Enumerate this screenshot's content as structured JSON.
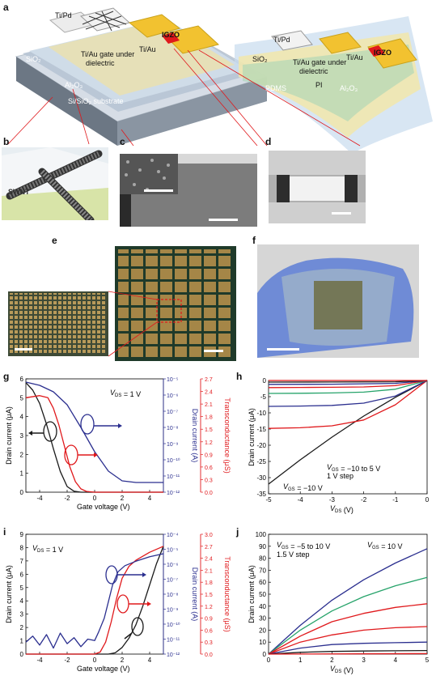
{
  "panel_labels": {
    "a": "a",
    "b": "b",
    "c": "c",
    "d": "d",
    "e": "e",
    "f": "f",
    "g": "g",
    "h": "h",
    "i": "i",
    "j": "j"
  },
  "panel_a": {
    "rigid": {
      "tipd": "Ti/Pd",
      "tiau": "Ti/Au",
      "igzo": "IGZO",
      "sio2": "SiO₂",
      "gate": "Ti/Au gate under",
      "gate2": "dielectric",
      "al2o3": "Al₂O₃",
      "substrate": "Si/SiO₂ substrate"
    },
    "flex": {
      "tipd": "Ti/Pd",
      "tiau": "Ti/Au",
      "igzo": "IGZO",
      "sio2": "SiO₂",
      "gate": "Ti/Au gate under",
      "gate2": "dielectric",
      "al2o3": "Al₂O₃",
      "pi": "PI",
      "pdms": "PDMS"
    }
  },
  "panel_b": {
    "swnt": "SWNT"
  },
  "colors": {
    "black": "#1a1a1a",
    "red": "#e0191c",
    "blue": "#2b2f8f",
    "green": "#26a36a",
    "yellow": "#f2c230"
  },
  "chart_data": [
    {
      "id": "g",
      "type": "line",
      "xlabel": "Gate voltage (V)",
      "ylabel_left": "Drain current (μA)",
      "ylabel_right1": "Drain current (A)",
      "ylabel_right2": "Transconductance (μS)",
      "annotation": "V_DS = 1 V",
      "xlim": [
        -5,
        5
      ],
      "xticks": [
        "-4",
        "-2",
        "0",
        "2",
        "4"
      ],
      "ylim_left": [
        0,
        6
      ],
      "yticks_left": [
        "0",
        "1",
        "2",
        "3",
        "4",
        "5",
        "6"
      ],
      "yticks_right1": [
        "10⁻¹²",
        "10⁻¹¹",
        "10⁻¹⁰",
        "10⁻⁹",
        "10⁻⁸",
        "10⁻⁷",
        "10⁻⁶",
        "10⁻⁵"
      ],
      "yticks_right2": [
        "0.0",
        "0.3",
        "0.6",
        "0.9",
        "1.2",
        "1.5",
        "1.8",
        "2.1",
        "2.4",
        "2.7"
      ],
      "series": [
        {
          "color": "black",
          "axis": "left",
          "x": [
            -5,
            -4.5,
            -4,
            -3.5,
            -3,
            -2.5,
            -2,
            -1.5,
            -1,
            0,
            5
          ],
          "y": [
            5.8,
            5.4,
            4.7,
            3.6,
            2.3,
            1.1,
            0.3,
            0.05,
            0,
            0,
            0
          ]
        },
        {
          "color": "red",
          "axis": "right2",
          "x": [
            -5,
            -4,
            -3.4,
            -3,
            -2.6,
            -2.2,
            -1.8,
            -1.4,
            -1,
            -0.6,
            0,
            5
          ],
          "y": [
            2.25,
            2.3,
            2.25,
            2.0,
            1.6,
            1.1,
            0.6,
            0.25,
            0.08,
            0.02,
            0,
            0
          ]
        },
        {
          "color": "blue",
          "axis": "right1",
          "x": [
            -5,
            -4,
            -3,
            -2,
            -1,
            0,
            1,
            2,
            3,
            5
          ],
          "y": [
            -5.2,
            -5.4,
            -5.8,
            -6.6,
            -8.0,
            -9.5,
            -10.7,
            -11.3,
            -11.4,
            -11.4
          ]
        }
      ]
    },
    {
      "id": "h",
      "type": "line",
      "xlabel": "V_DS (V)",
      "ylabel": "Drain current (μA)",
      "annotation_1": "V_GS = −10 to 5 V",
      "annotation_2": "1 V step",
      "curve_label": "V_GS = −10 V",
      "xlim": [
        -5,
        0
      ],
      "xticks": [
        "-5",
        "-4",
        "-3",
        "-2",
        "-1",
        "0"
      ],
      "ylim": [
        -35,
        0
      ],
      "yticks": [
        "0",
        "-5",
        "-10",
        "-15",
        "-20",
        "-25",
        "-30",
        "-35"
      ],
      "series": [
        {
          "color": "black",
          "x": [
            -5,
            -4,
            -3,
            -2,
            -1,
            0
          ],
          "y": [
            -32,
            -24.5,
            -17.5,
            -11,
            -5.2,
            0
          ]
        },
        {
          "color": "red",
          "x": [
            -5,
            -4,
            -3,
            -2,
            -1,
            0
          ],
          "y": [
            -14.8,
            -14.6,
            -14.0,
            -12.2,
            -7.5,
            0
          ]
        },
        {
          "color": "blue",
          "x": [
            -5,
            -4,
            -3,
            -2,
            -1,
            0
          ],
          "y": [
            -8,
            -7.9,
            -7.7,
            -7.0,
            -4.8,
            0
          ]
        },
        {
          "color": "green",
          "x": [
            -5,
            -4,
            -3,
            -2,
            -1,
            0
          ],
          "y": [
            -4,
            -3.95,
            -3.85,
            -3.6,
            -2.7,
            0
          ]
        },
        {
          "color": "red",
          "x": [
            -5,
            -4,
            -3,
            -2,
            -1,
            0
          ],
          "y": [
            -2.2,
            -2.15,
            -2.1,
            -2.0,
            -1.6,
            0
          ]
        },
        {
          "color": "blue",
          "x": [
            -5,
            -3,
            -1,
            0
          ],
          "y": [
            -1.2,
            -1.15,
            -0.9,
            0
          ]
        },
        {
          "color": "black",
          "x": [
            -5,
            -3,
            -1,
            0
          ],
          "y": [
            -0.5,
            -0.48,
            -0.4,
            0
          ]
        },
        {
          "color": "red",
          "x": [
            -5,
            0
          ],
          "y": [
            0,
            0
          ]
        }
      ]
    },
    {
      "id": "i",
      "type": "line",
      "xlabel": "Gate voltage (V)",
      "ylabel_left": "Drain current (μA)",
      "ylabel_right1": "Drain current (A)",
      "ylabel_right2": "Transconductance (μS)",
      "annotation": "V_DS = 1 V",
      "xlim": [
        -5,
        5
      ],
      "xticks": [
        "-4",
        "-2",
        "0",
        "2",
        "4"
      ],
      "ylim_left": [
        0,
        9
      ],
      "yticks_left": [
        "0",
        "1",
        "2",
        "3",
        "4",
        "5",
        "6",
        "7",
        "8",
        "9"
      ],
      "yticks_right1": [
        "10⁻¹²",
        "10⁻¹¹",
        "10⁻¹⁰",
        "10⁻⁹",
        "10⁻⁸",
        "10⁻⁷",
        "10⁻⁶",
        "10⁻⁵",
        "10⁻⁴"
      ],
      "yticks_right2": [
        "0.0",
        "0.3",
        "0.6",
        "0.9",
        "1.2",
        "1.5",
        "1.8",
        "2.1",
        "2.4",
        "2.7",
        "3.0"
      ],
      "series": [
        {
          "color": "black",
          "axis": "left",
          "x": [
            -5,
            0,
            1,
            1.5,
            2,
            2.5,
            3,
            3.5,
            4,
            4.5,
            5
          ],
          "y": [
            0,
            0,
            0,
            0.1,
            0.5,
            1.2,
            2.2,
            3.6,
            5.2,
            6.8,
            8.1
          ]
        },
        {
          "color": "red",
          "axis": "right2",
          "x": [
            -5,
            0,
            0.4,
            0.8,
            1.2,
            1.6,
            2.0,
            2.5,
            3,
            4,
            5
          ],
          "y": [
            0,
            0,
            0.05,
            0.3,
            0.8,
            1.4,
            1.9,
            2.2,
            2.35,
            2.55,
            2.7
          ]
        },
        {
          "color": "blue",
          "axis": "right1",
          "x": [
            -5,
            -4.5,
            -4,
            -3.5,
            -3,
            -2.5,
            -2,
            -1.5,
            -1,
            -0.5,
            0,
            0.3,
            0.7,
            1.0,
            1.3,
            1.7,
            2.2,
            3,
            4,
            5
          ],
          "y": [
            -11.2,
            -10.8,
            -11.4,
            -10.7,
            -11.6,
            -10.6,
            -11.3,
            -10.9,
            -11.5,
            -11.0,
            -11.1,
            -10.5,
            -9.6,
            -8.5,
            -7.4,
            -6.5,
            -6.1,
            -5.8,
            -5.5,
            -5.3
          ]
        }
      ]
    },
    {
      "id": "j",
      "type": "line",
      "xlabel": "V_DS (V)",
      "ylabel": "Drain current (μA)",
      "annotation_1": "V_GS = −5 to 10 V",
      "annotation_2": "1.5 V step",
      "curve_label": "V_GS = 10 V",
      "xlim": [
        0,
        5
      ],
      "xticks": [
        "0",
        "1",
        "2",
        "3",
        "4",
        "5"
      ],
      "ylim": [
        0,
        100
      ],
      "yticks": [
        "0",
        "10",
        "20",
        "30",
        "40",
        "50",
        "60",
        "70",
        "80",
        "90",
        "100"
      ],
      "series": [
        {
          "color": "blue",
          "x": [
            0,
            1,
            2,
            3,
            4,
            5
          ],
          "y": [
            0,
            24,
            45,
            62,
            76,
            88
          ]
        },
        {
          "color": "green",
          "x": [
            0,
            1,
            2,
            3,
            4,
            5
          ],
          "y": [
            0,
            20,
            36,
            48,
            57,
            64
          ]
        },
        {
          "color": "red",
          "x": [
            0,
            1,
            2,
            3,
            4,
            5
          ],
          "y": [
            0,
            15,
            27,
            34,
            39,
            42
          ]
        },
        {
          "color": "red",
          "x": [
            0,
            1,
            2,
            3,
            4,
            5
          ],
          "y": [
            0,
            10,
            16,
            20,
            22,
            23
          ]
        },
        {
          "color": "blue",
          "x": [
            0,
            1,
            2,
            3,
            4,
            5
          ],
          "y": [
            0,
            5,
            8,
            9,
            9.5,
            10
          ]
        },
        {
          "color": "black",
          "x": [
            0,
            1,
            2,
            3,
            4,
            5
          ],
          "y": [
            0,
            1.5,
            2.2,
            2.6,
            2.8,
            3
          ]
        },
        {
          "color": "red",
          "x": [
            0,
            5
          ],
          "y": [
            0,
            0.4
          ]
        }
      ]
    }
  ]
}
